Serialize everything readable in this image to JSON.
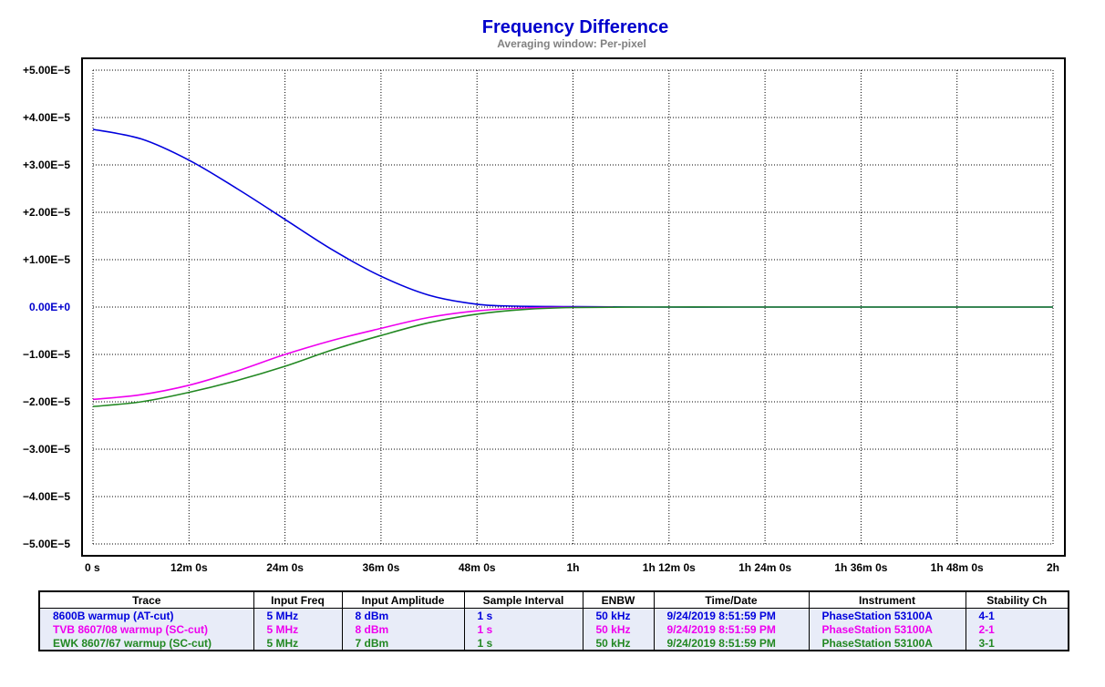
{
  "chart_data": {
    "type": "line",
    "title": "Frequency Difference",
    "subtitle": "Averaging window: Per-pixel",
    "title_color": "#0000cc",
    "subtitle_color": "#808080",
    "x_ticks": [
      "0 s",
      "12m 0s",
      "24m 0s",
      "36m 0s",
      "48m 0s",
      "1h",
      "1h 12m 0s",
      "1h 24m 0s",
      "1h 36m 0s",
      "1h 48m 0s",
      "2h"
    ],
    "xlim_minutes": [
      0,
      120
    ],
    "y_ticks": [
      {
        "value": 5e-05,
        "label": "+5.00E−5"
      },
      {
        "value": 4e-05,
        "label": "+4.00E−5"
      },
      {
        "value": 3e-05,
        "label": "+3.00E−5"
      },
      {
        "value": 2e-05,
        "label": "+2.00E−5"
      },
      {
        "value": 1e-05,
        "label": "+1.00E−5"
      },
      {
        "value": 0,
        "label": "0.00E+0",
        "highlight": true
      },
      {
        "value": -1e-05,
        "label": "−1.00E−5"
      },
      {
        "value": -2e-05,
        "label": "−2.00E−5"
      },
      {
        "value": -3e-05,
        "label": "−3.00E−5"
      },
      {
        "value": -4e-05,
        "label": "−4.00E−5"
      },
      {
        "value": -5e-05,
        "label": "−5.00E−5"
      }
    ],
    "ylim": [
      -5e-05,
      5e-05
    ],
    "grid": true,
    "series": [
      {
        "name": "8600B warmup (AT-cut)",
        "color": "#0000dd",
        "x": [
          0,
          6,
          12,
          18,
          24,
          30,
          36,
          42,
          48,
          53,
          60,
          70,
          80,
          90,
          100,
          110,
          120
        ],
        "y": [
          3.75e-05,
          3.55e-05,
          3.1e-05,
          2.5e-05,
          1.85e-05,
          1.2e-05,
          6.5e-06,
          2.5e-06,
          6e-07,
          2e-07,
          1e-07,
          0,
          0,
          0,
          0,
          0,
          0
        ]
      },
      {
        "name": "TVB 8607/08 warmup (SC-cut)",
        "color": "#ee00ee",
        "x": [
          0,
          6,
          12,
          18,
          24,
          30,
          36,
          42,
          48,
          54,
          60,
          65
        ],
        "y": [
          -1.95e-05,
          -1.85e-05,
          -1.65e-05,
          -1.35e-05,
          -1e-05,
          -7e-06,
          -4.5e-06,
          -2.2e-06,
          -8e-07,
          -2e-07,
          -5e-08,
          0
        ]
      },
      {
        "name": "EWK 8607/67 warmup (SC-cut)",
        "color": "#228822",
        "x": [
          0,
          6,
          12,
          18,
          24,
          30,
          36,
          42,
          48,
          54,
          60,
          70,
          80,
          90,
          100,
          110,
          120
        ],
        "y": [
          -2.1e-05,
          -2e-05,
          -1.8e-05,
          -1.55e-05,
          -1.25e-05,
          -9e-06,
          -6e-06,
          -3.3e-06,
          -1.5e-06,
          -5e-07,
          -1e-07,
          0,
          0,
          0,
          0,
          0,
          0
        ]
      }
    ]
  },
  "legend_table": {
    "headers": [
      "Trace",
      "Input Freq",
      "Input Amplitude",
      "Sample Interval",
      "ENBW",
      "Time/Date",
      "Instrument",
      "Stability Ch"
    ],
    "rows": [
      {
        "color": "#0000dd",
        "cells": [
          "8600B warmup (AT-cut)",
          "5 MHz",
          "8 dBm",
          "1 s",
          "50 kHz",
          "9/24/2019 8:51:59 PM",
          "PhaseStation 53100A",
          "4-1"
        ]
      },
      {
        "color": "#ee00ee",
        "cells": [
          "TVB 8607/08 warmup (SC-cut)",
          "5 MHz",
          "8 dBm",
          "1 s",
          "50 kHz",
          "9/24/2019 8:51:59 PM",
          "PhaseStation 53100A",
          "2-1"
        ]
      },
      {
        "color": "#228822",
        "cells": [
          "EWK 8607/67 warmup (SC-cut)",
          "5 MHz",
          "7 dBm",
          "1 s",
          "50 kHz",
          "9/24/2019 8:51:59 PM",
          "PhaseStation 53100A",
          "3-1"
        ]
      }
    ]
  }
}
